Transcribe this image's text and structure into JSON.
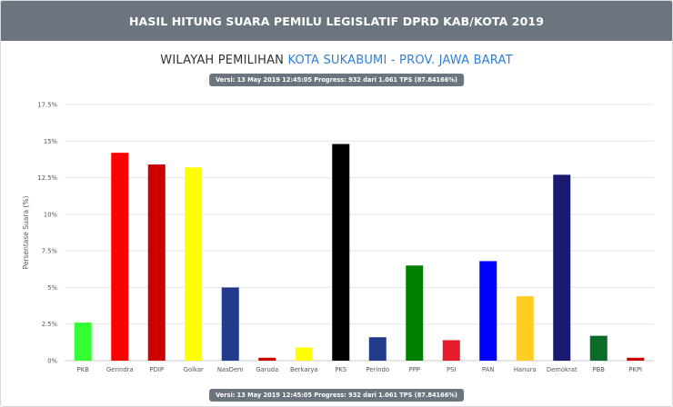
{
  "header": {
    "title": "HASIL HITUNG SUARA PEMILU LEGISLATIF DPRD KAB/KOTA 2019"
  },
  "region": {
    "prefix": "WILAYAH PEMILIHAN",
    "place": "KOTA SUKABUMI - PROV. JAWA BARAT"
  },
  "version_badge": "Versi: 13 May 2019 12:45:05 Progress: 932 dari 1.061 TPS (87.84166%)",
  "chart_data": {
    "type": "bar",
    "title": "",
    "xlabel": "",
    "ylabel": "Persentase Suara (%)",
    "ylim": [
      0,
      17.5
    ],
    "yticks": [
      "0%",
      "2.5%",
      "5%",
      "7.5%",
      "10%",
      "12.5%",
      "15%",
      "17.5%"
    ],
    "ytick_values": [
      0,
      2.5,
      5,
      7.5,
      10,
      12.5,
      15,
      17.5
    ],
    "grid": true,
    "categories": [
      "PKB",
      "Gerindra",
      "PDIP",
      "Golkar",
      "NasDem",
      "Garuda",
      "Berkarya",
      "PKS",
      "Perindo",
      "PPP",
      "PSI",
      "PAN",
      "Hanura",
      "Demokrat",
      "PBB",
      "PKPI"
    ],
    "values": [
      2.6,
      14.2,
      13.4,
      13.2,
      5.0,
      0.2,
      0.9,
      14.8,
      1.6,
      6.5,
      1.4,
      6.8,
      4.4,
      12.7,
      1.7,
      0.2
    ],
    "colors": [
      "#33ff33",
      "#ff0000",
      "#cc0000",
      "#ffff00",
      "#223a8a",
      "#cc0000",
      "#ffff00",
      "#000000",
      "#223a8a",
      "#008000",
      "#e41c2b",
      "#0000ff",
      "#ffcc22",
      "#1a1a6e",
      "#0d6b2a",
      "#cc0000"
    ]
  }
}
